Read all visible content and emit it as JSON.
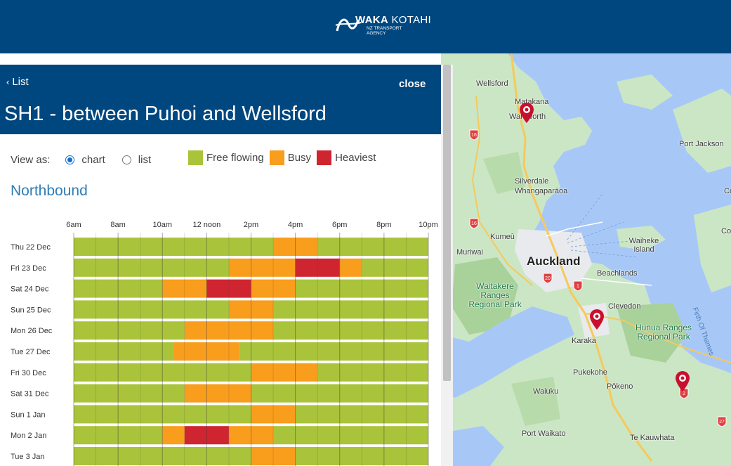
{
  "header": {
    "brand_bold": "WAKA",
    "brand_light": "KOTAHI",
    "brand_sub1": "NZ TRANSPORT",
    "brand_sub2": "AGENCY"
  },
  "panel": {
    "back_label": "List",
    "close_label": "close",
    "title": "SH1 - between Puhoi and Wellsford",
    "view_as_label": "View as:",
    "view_options": [
      "chart",
      "list"
    ],
    "view_selected": "chart",
    "direction": "Northbound"
  },
  "legend": [
    {
      "label": "Free flowing",
      "color": "#a9c43b"
    },
    {
      "label": "Busy",
      "color": "#f99d1c"
    },
    {
      "label": "Heaviest",
      "color": "#cf2531"
    }
  ],
  "chart_data": {
    "type": "heatmap",
    "x_ticks": [
      "6am",
      "8am",
      "10am",
      "12 noon",
      "2pm",
      "4pm",
      "6pm",
      "8pm",
      "10pm"
    ],
    "x_range_hours": [
      6,
      22
    ],
    "levels": {
      "0": "Free flowing",
      "1": "Busy",
      "2": "Heaviest"
    },
    "rows": [
      {
        "day": "Thu 22 Dec",
        "segments": [
          [
            6,
            15,
            0
          ],
          [
            15,
            17,
            1
          ],
          [
            17,
            22,
            0
          ]
        ]
      },
      {
        "day": "Fri 23 Dec",
        "segments": [
          [
            6,
            13,
            0
          ],
          [
            13,
            16,
            1
          ],
          [
            16,
            18,
            2
          ],
          [
            18,
            19,
            1
          ],
          [
            19,
            22,
            0
          ]
        ]
      },
      {
        "day": "Sat 24 Dec",
        "segments": [
          [
            6,
            10,
            0
          ],
          [
            10,
            12,
            1
          ],
          [
            12,
            14,
            2
          ],
          [
            14,
            16,
            1
          ],
          [
            16,
            22,
            0
          ]
        ]
      },
      {
        "day": "Sun 25 Dec",
        "segments": [
          [
            6,
            13,
            0
          ],
          [
            13,
            15,
            1
          ],
          [
            15,
            22,
            0
          ]
        ]
      },
      {
        "day": "Mon 26 Dec",
        "segments": [
          [
            6,
            11,
            0
          ],
          [
            11,
            15,
            1
          ],
          [
            15,
            22,
            0
          ]
        ]
      },
      {
        "day": "Tue 27 Dec",
        "segments": [
          [
            6,
            10.5,
            0
          ],
          [
            10.5,
            13.5,
            1
          ],
          [
            13.5,
            22,
            0
          ]
        ]
      },
      {
        "day": "Fri 30 Dec",
        "segments": [
          [
            6,
            14,
            0
          ],
          [
            14,
            17,
            1
          ],
          [
            17,
            22,
            0
          ]
        ]
      },
      {
        "day": "Sat 31 Dec",
        "segments": [
          [
            6,
            11,
            0
          ],
          [
            11,
            14,
            1
          ],
          [
            14,
            22,
            0
          ]
        ]
      },
      {
        "day": "Sun 1 Jan",
        "segments": [
          [
            6,
            14,
            0
          ],
          [
            14,
            16,
            1
          ],
          [
            16,
            22,
            0
          ]
        ]
      },
      {
        "day": "Mon 2 Jan",
        "segments": [
          [
            6,
            10,
            0
          ],
          [
            10,
            11,
            1
          ],
          [
            11,
            13,
            2
          ],
          [
            13,
            15,
            1
          ],
          [
            15,
            22,
            0
          ]
        ]
      },
      {
        "day": "Tue 3 Jan",
        "segments": [
          [
            6,
            14,
            0
          ],
          [
            14,
            16,
            1
          ],
          [
            16,
            22,
            0
          ]
        ]
      }
    ]
  },
  "map": {
    "labels": [
      "Wellsford",
      "Matakana",
      "Warkworth",
      "Port Jackson",
      "Silverdale",
      "Whangaparāoa",
      "Kumeū",
      "Waiheke Island",
      "Muriwai",
      "Auckland",
      "Beachlands",
      "Waitakere Ranges Regional Park",
      "Clevedon",
      "Hunua Ranges Regional Park",
      "Karaka",
      "Firth Of Thames",
      "Pukekohe",
      "Waiuku",
      "Pōkeno",
      "Port Waikato",
      "Te Kauwhata",
      "Co",
      "Co"
    ],
    "route_shields": [
      "16",
      "16",
      "20",
      "1",
      "2",
      "27"
    ]
  }
}
